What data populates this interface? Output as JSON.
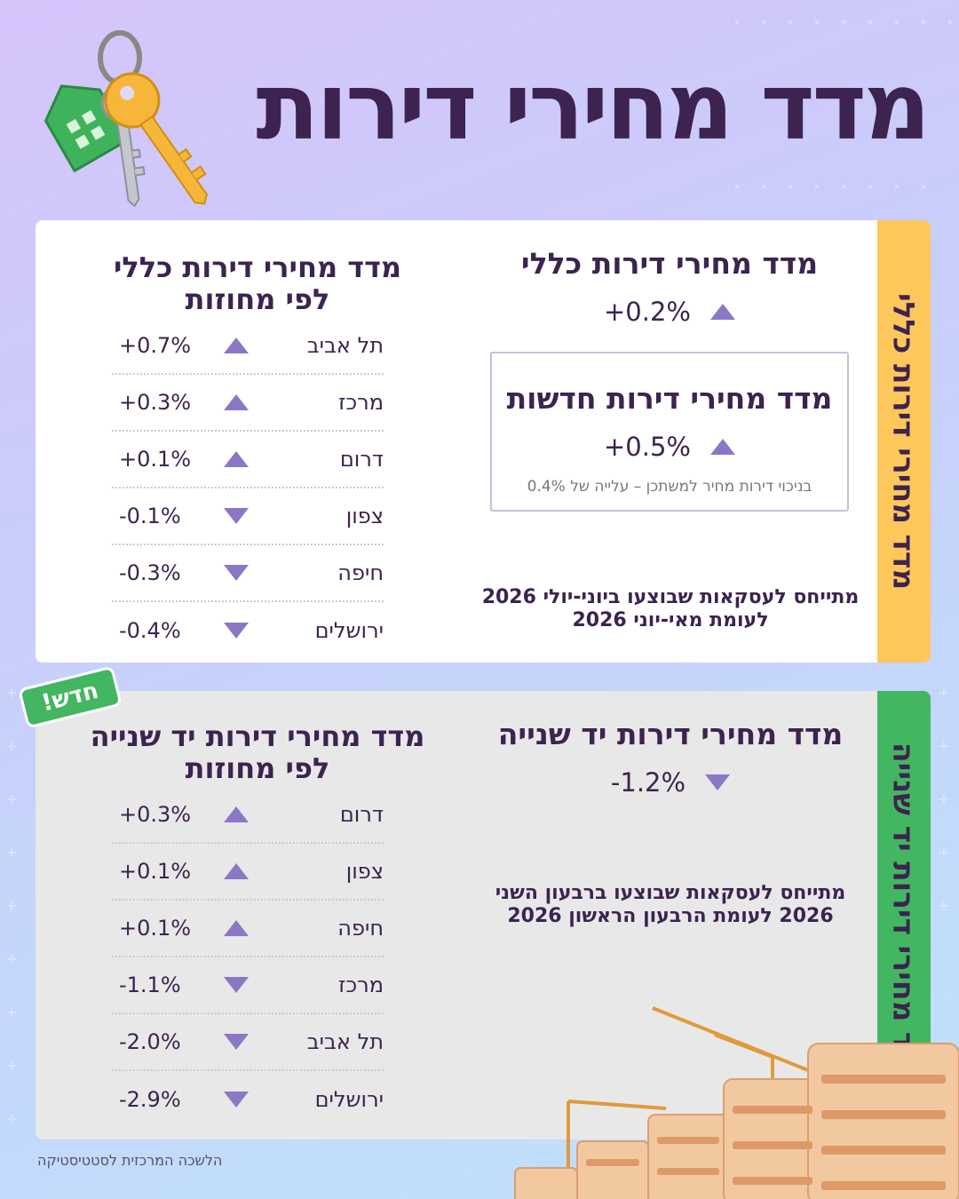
{
  "title": "מדד מחירי דירות",
  "card1": {
    "side_label": "מדד מחירי דירות כללי",
    "main": {
      "heading": "מדד מחירי דירות כללי",
      "value": "+0.2%",
      "direction": "up"
    },
    "new_dwellings": {
      "heading": "מדד מחירי דירות חדשות",
      "value": "+0.5%",
      "direction": "up",
      "note": "בניכוי דירות מחיר למשתכן – עלייה של 0.4%"
    },
    "period_line1": "מתייחס לעסקאות שבוצעו ביוני-יולי 2026",
    "period_line2": "לעומת מאי-יוני 2026",
    "regions_title_line1": "מדד מחירי דירות כללי",
    "regions_title_line2": "לפי מחוזות",
    "regions": [
      {
        "name": "תל אביב",
        "value": "+0.7%",
        "direction": "up"
      },
      {
        "name": "מרכז",
        "value": "+0.3%",
        "direction": "up"
      },
      {
        "name": "דרום",
        "value": "+0.1%",
        "direction": "up"
      },
      {
        "name": "צפון",
        "value": "-0.1%",
        "direction": "down"
      },
      {
        "name": "חיפה",
        "value": "-0.3%",
        "direction": "down"
      },
      {
        "name": "ירושלים",
        "value": "-0.4%",
        "direction": "down"
      }
    ]
  },
  "card2": {
    "side_label": "מדד מחירי דירות יד שנייה",
    "badge": "חדש!",
    "main": {
      "heading": "מדד מחירי דירות יד שנייה",
      "value": "-1.2%",
      "direction": "down"
    },
    "period_line1": "מתייחס לעסקאות שבוצעו ברבעון השני",
    "period_line2": "2026 לעומת הרבעון הראשון 2026",
    "regions_title_line1": "מדד מחירי דירות יד שנייה",
    "regions_title_line2": "לפי מחוזות",
    "regions": [
      {
        "name": "דרום",
        "value": "+0.3%",
        "direction": "up"
      },
      {
        "name": "צפון",
        "value": "+0.1%",
        "direction": "up"
      },
      {
        "name": "חיפה",
        "value": "+0.1%",
        "direction": "up"
      },
      {
        "name": "מרכז",
        "value": "-1.1%",
        "direction": "down"
      },
      {
        "name": "תל אביב",
        "value": "-2.0%",
        "direction": "down"
      },
      {
        "name": "ירושלים",
        "value": "-2.9%",
        "direction": "down"
      }
    ]
  },
  "footer": "הלשכה המרכזית לסטטיסטיקה",
  "colors": {
    "title": "#3c2350",
    "arrow": "#8c77c4",
    "card1_strip": "#fec75a",
    "card2_strip": "#43b661"
  },
  "icons": [
    "keys-illustration",
    "construction-illustration",
    "up-arrow-icon",
    "down-arrow-icon"
  ]
}
